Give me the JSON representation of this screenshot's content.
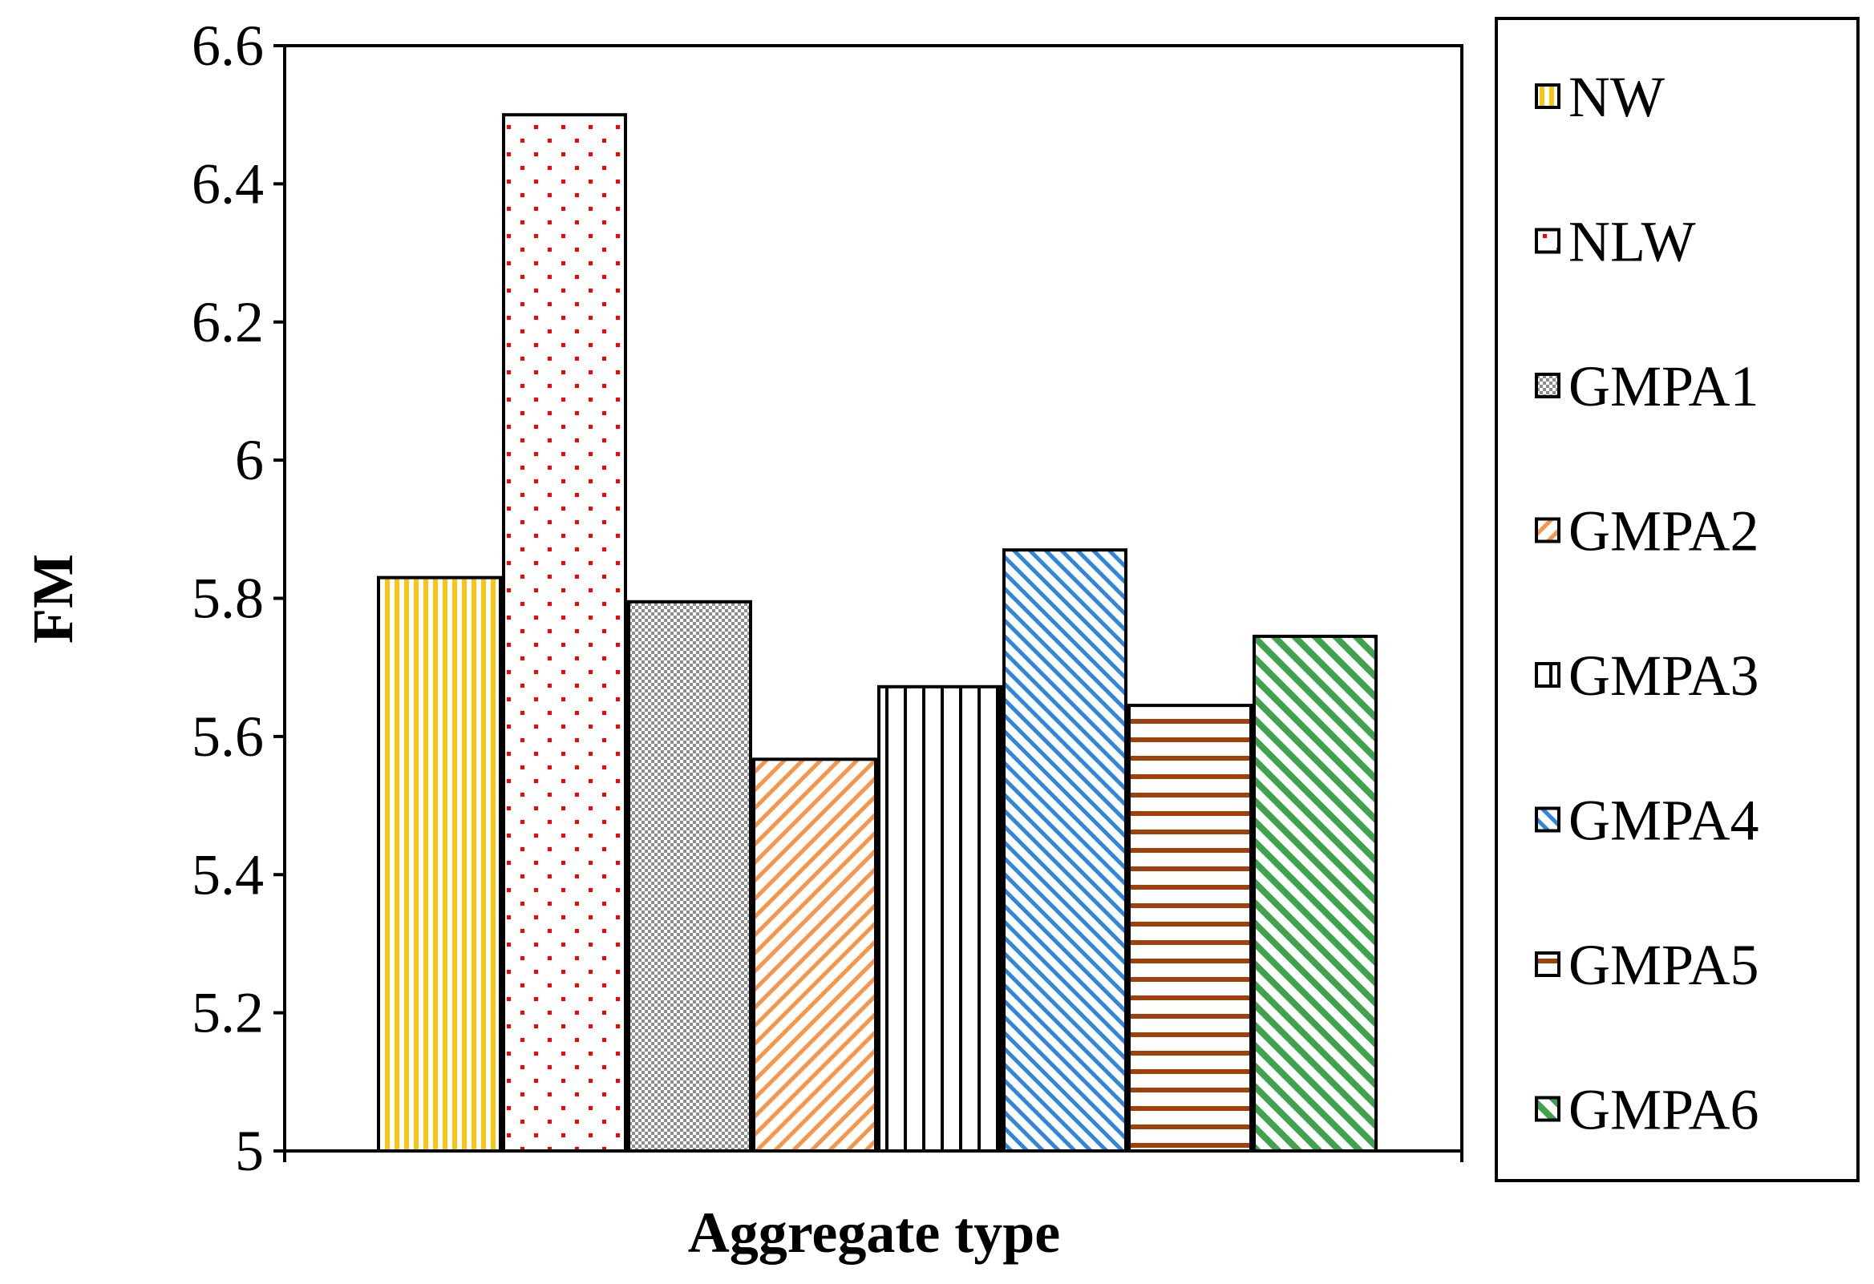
{
  "chart_data": {
    "type": "bar",
    "title": "",
    "xlabel": "Aggregate type",
    "ylabel": "FM",
    "ylim": [
      5,
      6.6
    ],
    "yticks": [
      "5",
      "5.2",
      "5.4",
      "5.6",
      "5.8",
      "6",
      "6.2",
      "6.4",
      "6.6"
    ],
    "grid": false,
    "legend_position": "right",
    "series": [
      {
        "name": "NW",
        "value": 5.83,
        "color": "#F5C518",
        "pattern": "vertical-lines"
      },
      {
        "name": "NLW",
        "value": 6.5,
        "color": "#FF0000",
        "pattern": "dots"
      },
      {
        "name": "GMPA1",
        "value": 5.795,
        "color": "#8C8C8C",
        "pattern": "checker"
      },
      {
        "name": "GMPA2",
        "value": 5.567,
        "color": "#F7954A",
        "pattern": "diagonal-down"
      },
      {
        "name": "GMPA3",
        "value": 5.672,
        "color": "#000000",
        "pattern": "wide-vertical-lines"
      },
      {
        "name": "GMPA4",
        "value": 5.87,
        "color": "#2E86DE",
        "pattern": "diagonal-up"
      },
      {
        "name": "GMPA5",
        "value": 5.645,
        "color": "#A0400A",
        "pattern": "horizontal-lines"
      },
      {
        "name": "GMPA6",
        "value": 5.745,
        "color": "#3FA34D",
        "pattern": "wide-diagonal-up"
      }
    ]
  }
}
